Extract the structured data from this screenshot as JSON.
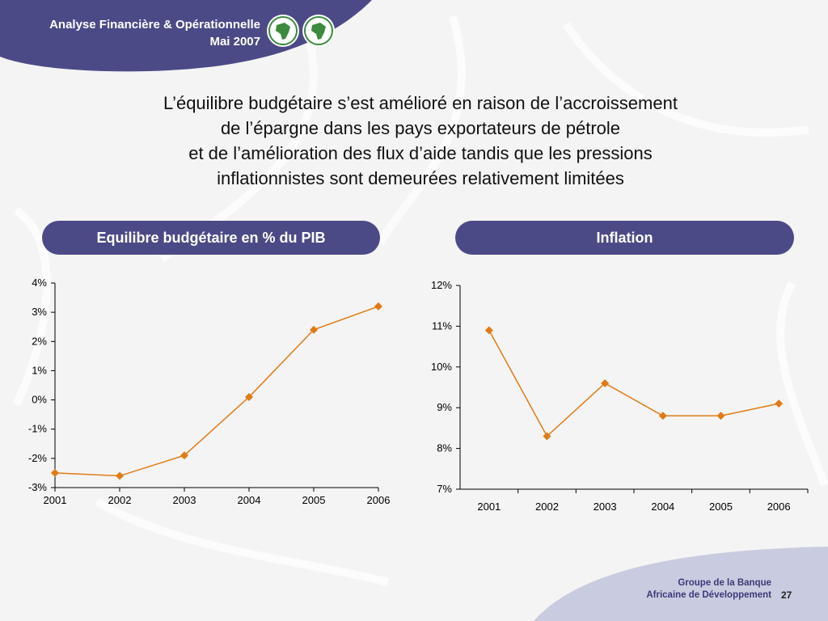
{
  "header": {
    "line1": "Analyse Financière & Opérationnelle",
    "line2": "Mai 2007"
  },
  "title_lines": [
    "L’équilibre budgétaire s’est amélioré en raison de l’accroissement",
    "de l’épargne dans les pays exportateurs de pétrole",
    "et de l’amélioration des flux d’aide tandis que les pressions",
    "inflationnistes sont demeurées relativement limitées"
  ],
  "colors": {
    "accent_purple": "#4c4a86",
    "line_orange": "#e07b16",
    "marker_orange": "#e07b16"
  },
  "chart_data": [
    {
      "type": "line",
      "title": "Equilibre budgétaire en % du PIB",
      "categories": [
        "2001",
        "2002",
        "2003",
        "2004",
        "2005",
        "2006"
      ],
      "values": [
        -2.5,
        -2.6,
        -1.9,
        0.1,
        2.4,
        3.2
      ],
      "ylim": [
        -3,
        4
      ],
      "yticks": [
        4,
        3,
        2,
        1,
        0,
        -1,
        -2,
        -3
      ],
      "ytick_labels": [
        "4%",
        "3%",
        "2%",
        "1%",
        "0%",
        "-1%",
        "-2%",
        "-3%"
      ],
      "grid": false
    },
    {
      "type": "line",
      "title": "Inflation",
      "categories": [
        "2001",
        "2002",
        "2003",
        "2004",
        "2005",
        "2006"
      ],
      "values": [
        10.9,
        8.3,
        9.6,
        8.8,
        8.8,
        9.1
      ],
      "ylim": [
        7,
        12
      ],
      "yticks": [
        12,
        11,
        10,
        9,
        8,
        7
      ],
      "ytick_labels": [
        "12%",
        "11%",
        "10%",
        "9%",
        "8%",
        "7%"
      ],
      "grid": false
    }
  ],
  "footer": {
    "org_line1": "Groupe de la Banque",
    "org_line2": "Africaine de Développement",
    "page_number": "27"
  }
}
